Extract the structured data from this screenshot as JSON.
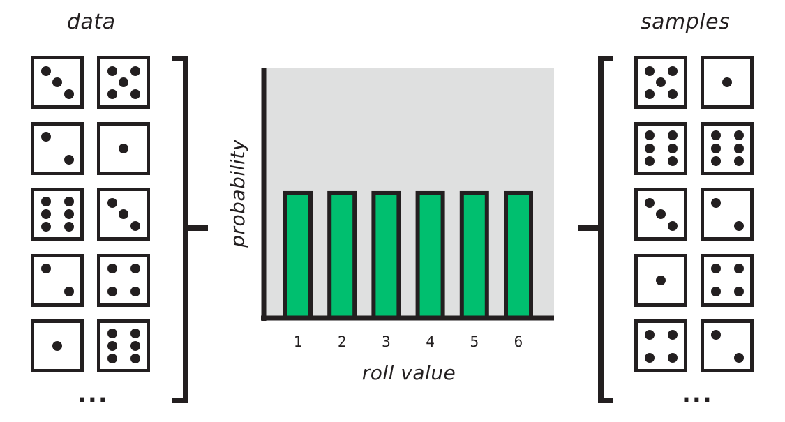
{
  "titles": {
    "data": "data",
    "samples": "samples"
  },
  "data_dice": [
    3,
    5,
    2,
    1,
    6,
    3,
    2,
    4,
    1,
    6
  ],
  "samples_dice": [
    5,
    1,
    6,
    6,
    3,
    2,
    1,
    4,
    4,
    2
  ],
  "ellipsis": {
    "data": "...",
    "samples": "..."
  },
  "colors": {
    "bar": "#00bf6f",
    "ink": "#231f20",
    "plot_bg": "#dfe0e0"
  },
  "chart_data": {
    "type": "bar",
    "categories": [
      "1",
      "2",
      "3",
      "4",
      "5",
      "6"
    ],
    "values": [
      0.1667,
      0.1667,
      0.1667,
      0.1667,
      0.1667,
      0.1667
    ],
    "xlabel": "roll value",
    "ylabel": "probability",
    "ylim": [
      0,
      0.3333
    ]
  }
}
